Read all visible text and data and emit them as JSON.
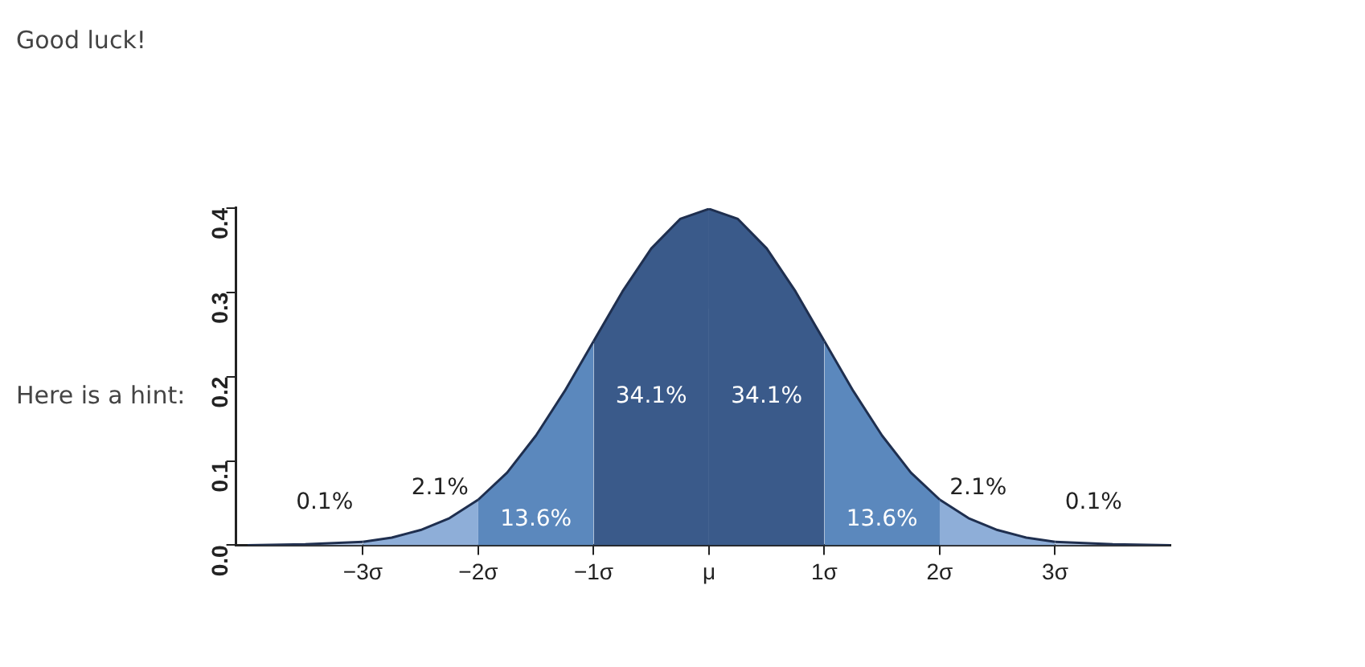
{
  "chart_data": {
    "type": "area",
    "title": "Good luck!",
    "annotations": [
      "Here is a hint:",
      "0.1%",
      "2.1%",
      "13.6%",
      "34.1%",
      "34.1%",
      "13.6%",
      "2.1%",
      "0.1%"
    ],
    "series": [
      {
        "color": "#b3c8e6",
        "x": [
          -4,
          -3.5,
          -3
        ],
        "values": [
          0.0,
          0.001,
          0.004
        ]
      },
      {
        "color": "#8eaed8",
        "x": [
          -3,
          -2.75,
          -2.5,
          -2.25,
          -2
        ],
        "values": [
          0.004,
          0.009,
          0.018,
          0.032,
          0.054
        ]
      },
      {
        "color": "#5b88bd",
        "x": [
          -2,
          -1.75,
          -1.5,
          -1.25,
          -1
        ],
        "values": [
          0.054,
          0.086,
          0.13,
          0.183,
          0.242
        ]
      },
      {
        "color": "#3a5a8a",
        "x": [
          -1,
          -0.75,
          -0.5,
          -0.25,
          0
        ],
        "values": [
          0.242,
          0.301,
          0.352,
          0.387,
          0.399
        ]
      },
      {
        "color": "#3a5a8a",
        "x": [
          0,
          0.25,
          0.5,
          0.75,
          1
        ],
        "values": [
          0.399,
          0.387,
          0.352,
          0.301,
          0.242
        ]
      },
      {
        "color": "#5b88bd",
        "x": [
          1,
          1.25,
          1.5,
          1.75,
          2
        ],
        "values": [
          0.242,
          0.183,
          0.13,
          0.086,
          0.054
        ]
      },
      {
        "color": "#8eaed8",
        "x": [
          2,
          2.25,
          2.5,
          2.75,
          3
        ],
        "values": [
          0.054,
          0.032,
          0.018,
          0.009,
          0.004
        ]
      },
      {
        "color": "#b3c8e6",
        "x": [
          3,
          3.5,
          4
        ],
        "values": [
          0.004,
          0.001,
          0.0
        ]
      }
    ],
    "xlim": [
      -4.1,
      4
    ],
    "xticks": [
      {
        "value": -3,
        "label": "−3σ"
      },
      {
        "value": -2,
        "label": "−2σ"
      },
      {
        "value": -1,
        "label": "−1σ"
      },
      {
        "value": 0,
        "label": "μ"
      },
      {
        "value": 1,
        "label": "1σ"
      },
      {
        "value": 2,
        "label": "2σ"
      },
      {
        "value": 3,
        "label": "3σ"
      }
    ],
    "ylim": [
      0,
      0.4
    ],
    "yticks": [
      {
        "value": 0,
        "label": "0.0"
      },
      0.1,
      0.2,
      0.3,
      0.4
    ],
    "grid": false,
    "legend": false
  }
}
